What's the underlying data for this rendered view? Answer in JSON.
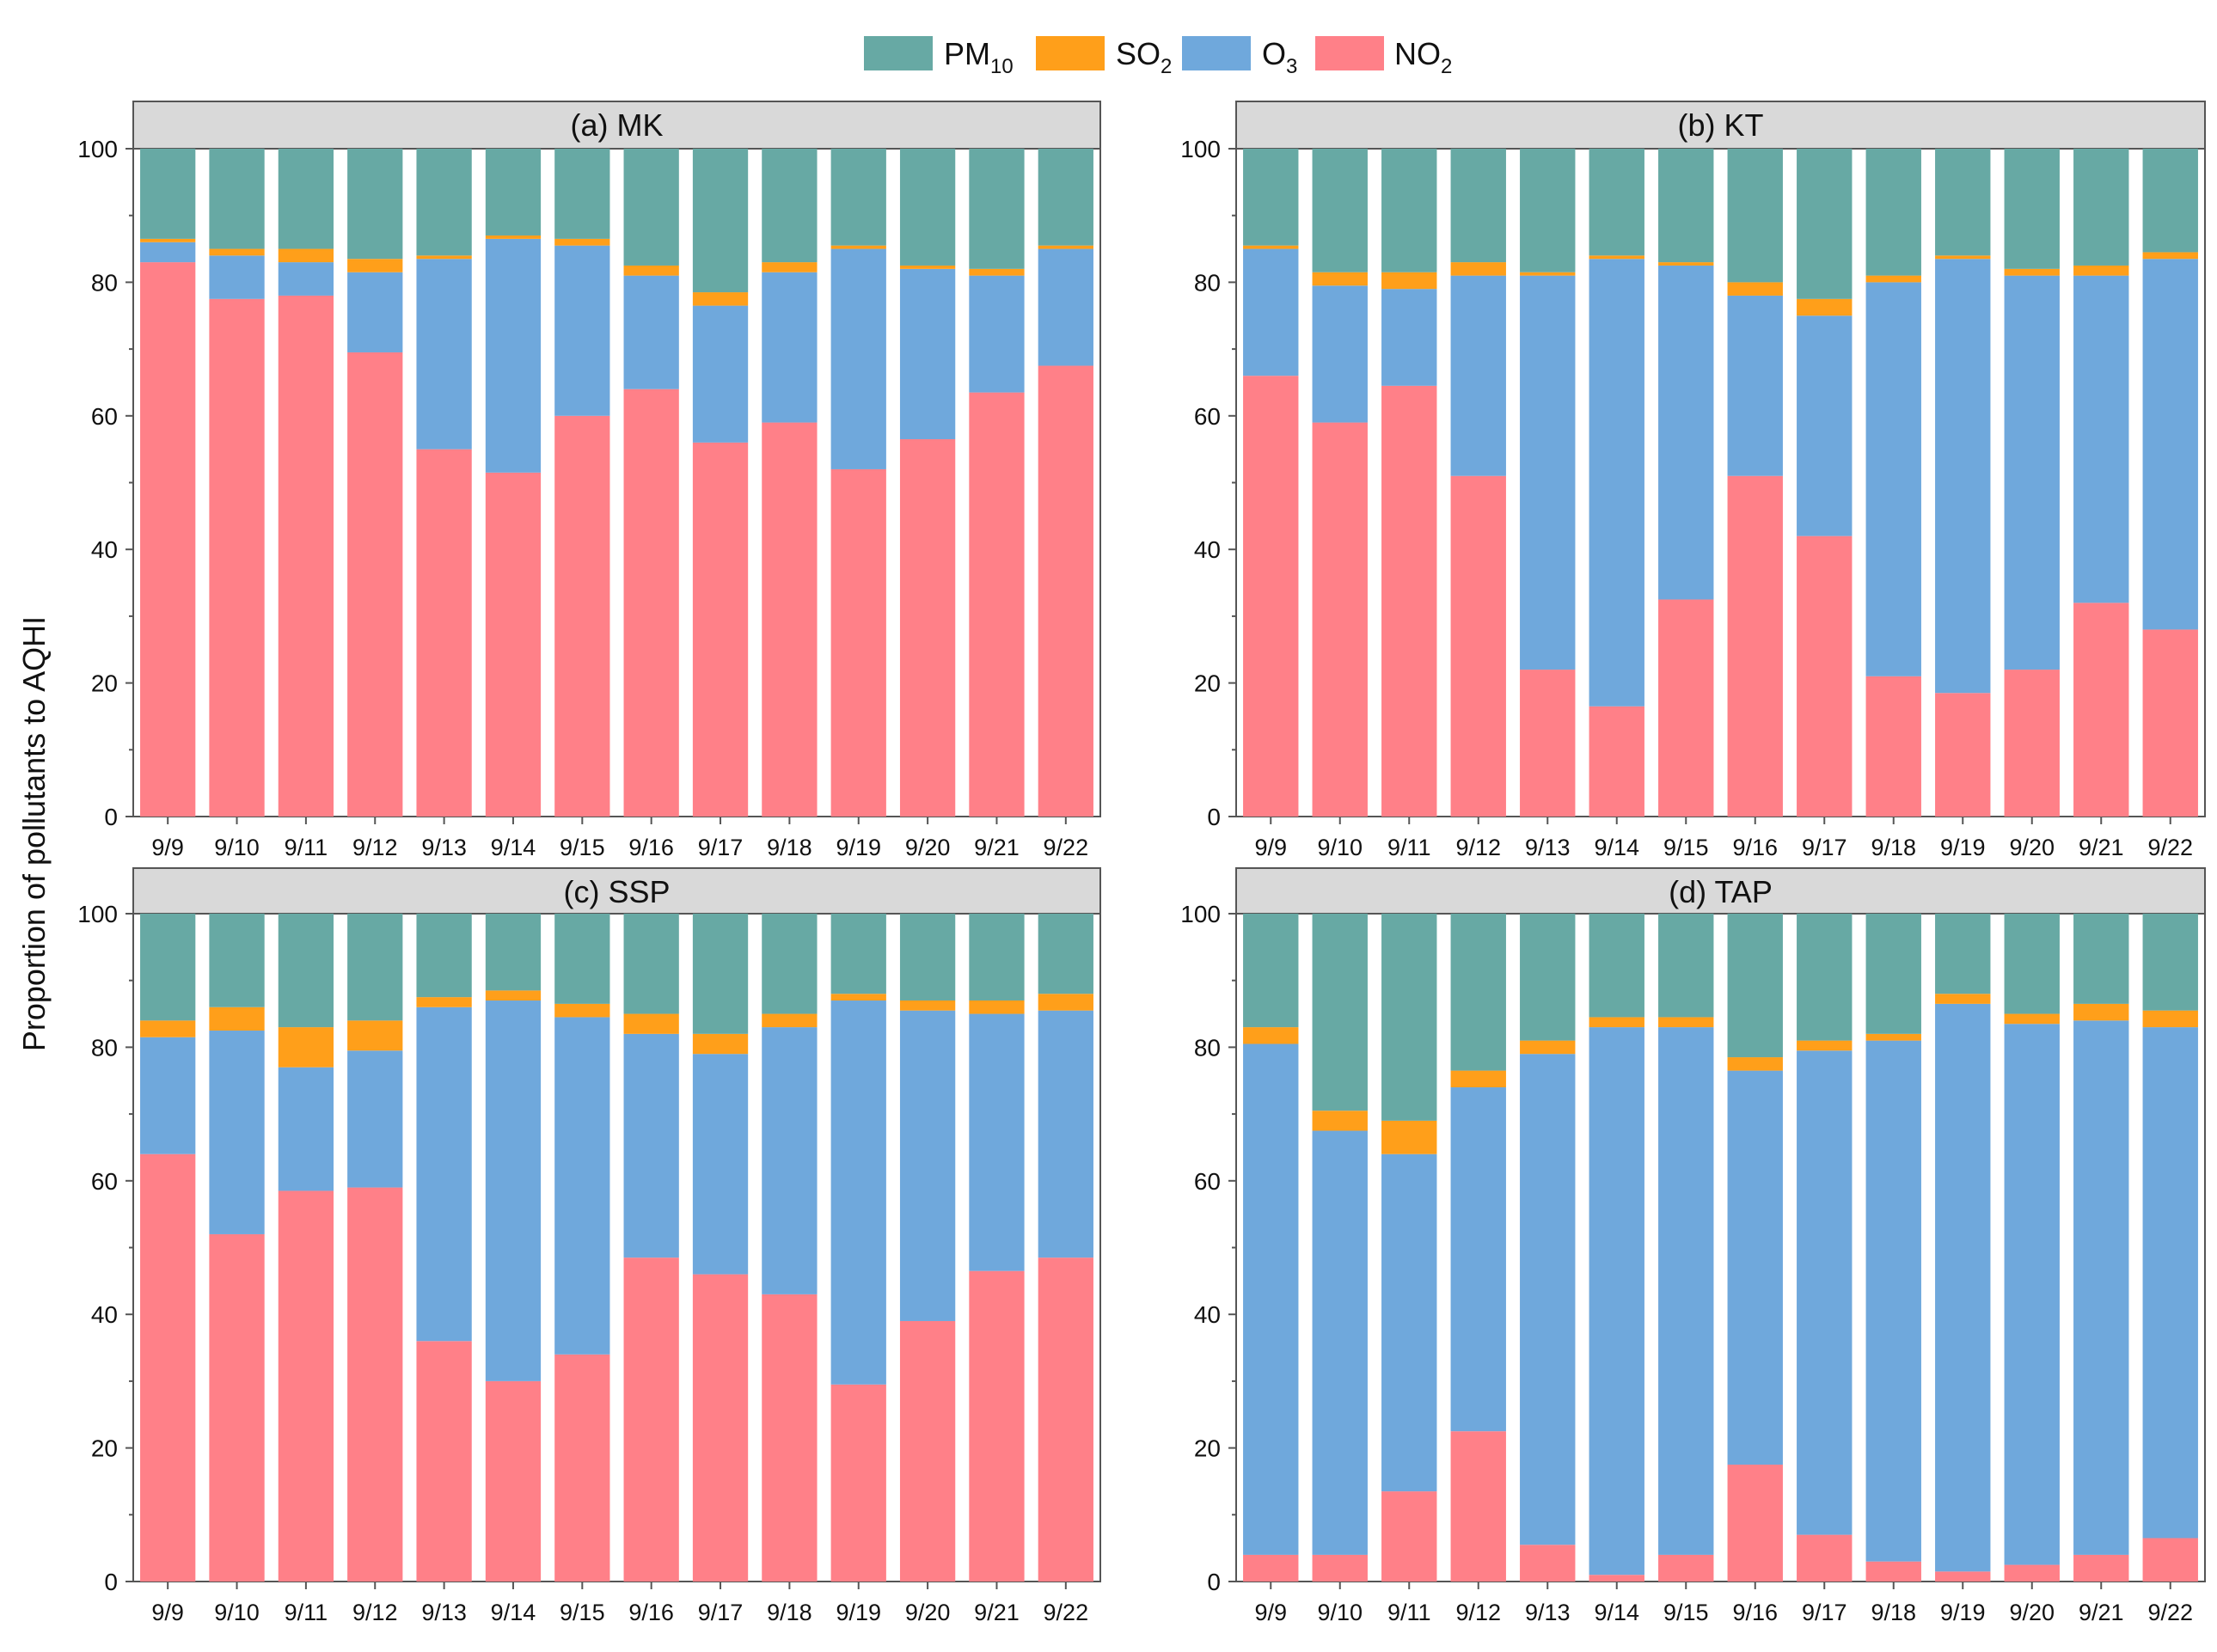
{
  "legend": [
    {
      "key": "PM10",
      "base": "PM",
      "sub": "10",
      "color": "#67a9a4"
    },
    {
      "key": "SO2",
      "base": "SO",
      "sub": "2",
      "color": "#ff9f1a"
    },
    {
      "key": "O3",
      "base": "O",
      "sub": "3",
      "color": "#6fa8dc"
    },
    {
      "key": "NO2",
      "base": "NO",
      "sub": "2",
      "color": "#ff8088"
    }
  ],
  "ylabel": "Proportion of pollutants to AQHI",
  "chart_data": [
    {
      "type": "bar",
      "stacked": true,
      "title": "(a) MK",
      "categories": [
        "9/9",
        "9/10",
        "9/11",
        "9/12",
        "9/13",
        "9/14",
        "9/15",
        "9/16",
        "9/17",
        "9/18",
        "9/19",
        "9/20",
        "9/21",
        "9/22"
      ],
      "ylim": [
        0,
        100
      ],
      "yticks": [
        0,
        20,
        40,
        60,
        80,
        100
      ],
      "series": [
        {
          "name": "NO2",
          "values": [
            83,
            77.5,
            78,
            69.5,
            55,
            51.5,
            60,
            64,
            56,
            59,
            52,
            56.5,
            63.5,
            67.5
          ]
        },
        {
          "name": "O3",
          "values": [
            3,
            6.5,
            5,
            12,
            28.5,
            35,
            25.5,
            17,
            20.5,
            22.5,
            33,
            25.5,
            17.5,
            17.5
          ]
        },
        {
          "name": "SO2",
          "values": [
            0.5,
            1,
            2,
            2,
            0.5,
            0.5,
            1,
            1.5,
            2,
            1.5,
            0.5,
            0.5,
            1,
            0.5
          ]
        },
        {
          "name": "PM10",
          "values": [
            13.5,
            15,
            15,
            16.5,
            16,
            13,
            13.5,
            17.5,
            21.5,
            17,
            14.5,
            17.5,
            18,
            14.5
          ]
        }
      ]
    },
    {
      "type": "bar",
      "stacked": true,
      "title": "(b) KT",
      "categories": [
        "9/9",
        "9/10",
        "9/11",
        "9/12",
        "9/13",
        "9/14",
        "9/15",
        "9/16",
        "9/17",
        "9/18",
        "9/19",
        "9/20",
        "9/21",
        "9/22"
      ],
      "ylim": [
        0,
        100
      ],
      "yticks": [
        0,
        20,
        40,
        60,
        80,
        100
      ],
      "series": [
        {
          "name": "NO2",
          "values": [
            66,
            59,
            64.5,
            51,
            22,
            16.5,
            32.5,
            51,
            42,
            21,
            18.5,
            22,
            32,
            28
          ]
        },
        {
          "name": "O3",
          "values": [
            19,
            20.5,
            14.5,
            30,
            59,
            67,
            50,
            27,
            33,
            59,
            65,
            59,
            49,
            55.5
          ]
        },
        {
          "name": "SO2",
          "values": [
            0.5,
            2,
            2.5,
            2,
            0.5,
            0.5,
            0.5,
            2,
            2.5,
            1,
            0.5,
            1,
            1.5,
            1
          ]
        },
        {
          "name": "PM10",
          "values": [
            14.5,
            18.5,
            18.5,
            17,
            18.5,
            16,
            17,
            20,
            22.5,
            19,
            16,
            18,
            17.5,
            15.5
          ]
        }
      ]
    },
    {
      "type": "bar",
      "stacked": true,
      "title": "(c) SSP",
      "categories": [
        "9/9",
        "9/10",
        "9/11",
        "9/12",
        "9/13",
        "9/14",
        "9/15",
        "9/16",
        "9/17",
        "9/18",
        "9/19",
        "9/20",
        "9/21",
        "9/22"
      ],
      "ylim": [
        0,
        100
      ],
      "yticks": [
        0,
        20,
        40,
        60,
        80,
        100
      ],
      "series": [
        {
          "name": "NO2",
          "values": [
            64,
            52,
            58.5,
            59,
            36,
            30,
            34,
            48.5,
            46,
            43,
            29.5,
            39,
            46.5,
            48.5
          ]
        },
        {
          "name": "O3",
          "values": [
            17.5,
            30.5,
            18.5,
            20.5,
            50,
            57,
            50.5,
            33.5,
            33,
            40,
            57.5,
            46.5,
            38.5,
            37
          ]
        },
        {
          "name": "SO2",
          "values": [
            2.5,
            3.5,
            6,
            4.5,
            1.5,
            1.5,
            2,
            3,
            3,
            2,
            1,
            1.5,
            2,
            2.5
          ]
        },
        {
          "name": "PM10",
          "values": [
            16,
            14,
            17,
            16,
            12.5,
            11.5,
            13.5,
            15,
            18,
            15,
            12,
            13,
            13,
            12
          ]
        }
      ]
    },
    {
      "type": "bar",
      "stacked": true,
      "title": "(d) TAP",
      "categories": [
        "9/9",
        "9/10",
        "9/11",
        "9/12",
        "9/13",
        "9/14",
        "9/15",
        "9/16",
        "9/17",
        "9/18",
        "9/19",
        "9/20",
        "9/21",
        "9/22"
      ],
      "ylim": [
        0,
        100
      ],
      "yticks": [
        0,
        20,
        40,
        60,
        80,
        100
      ],
      "series": [
        {
          "name": "NO2",
          "values": [
            4,
            4,
            13.5,
            22.5,
            5.5,
            1,
            4,
            17.5,
            7,
            3,
            1.5,
            2.5,
            4,
            6.5
          ]
        },
        {
          "name": "O3",
          "values": [
            76.5,
            63.5,
            50.5,
            51.5,
            73.5,
            82,
            79,
            59,
            72.5,
            78,
            85,
            81,
            80,
            76.5
          ]
        },
        {
          "name": "SO2",
          "values": [
            2.5,
            3,
            5,
            2.5,
            2,
            1.5,
            1.5,
            2,
            1.5,
            1,
            1.5,
            1.5,
            2.5,
            2.5
          ]
        },
        {
          "name": "PM10",
          "values": [
            17,
            29.5,
            31,
            23.5,
            19,
            15.5,
            15.5,
            21.5,
            19,
            18,
            12,
            15,
            13.5,
            14.5
          ]
        }
      ]
    }
  ]
}
